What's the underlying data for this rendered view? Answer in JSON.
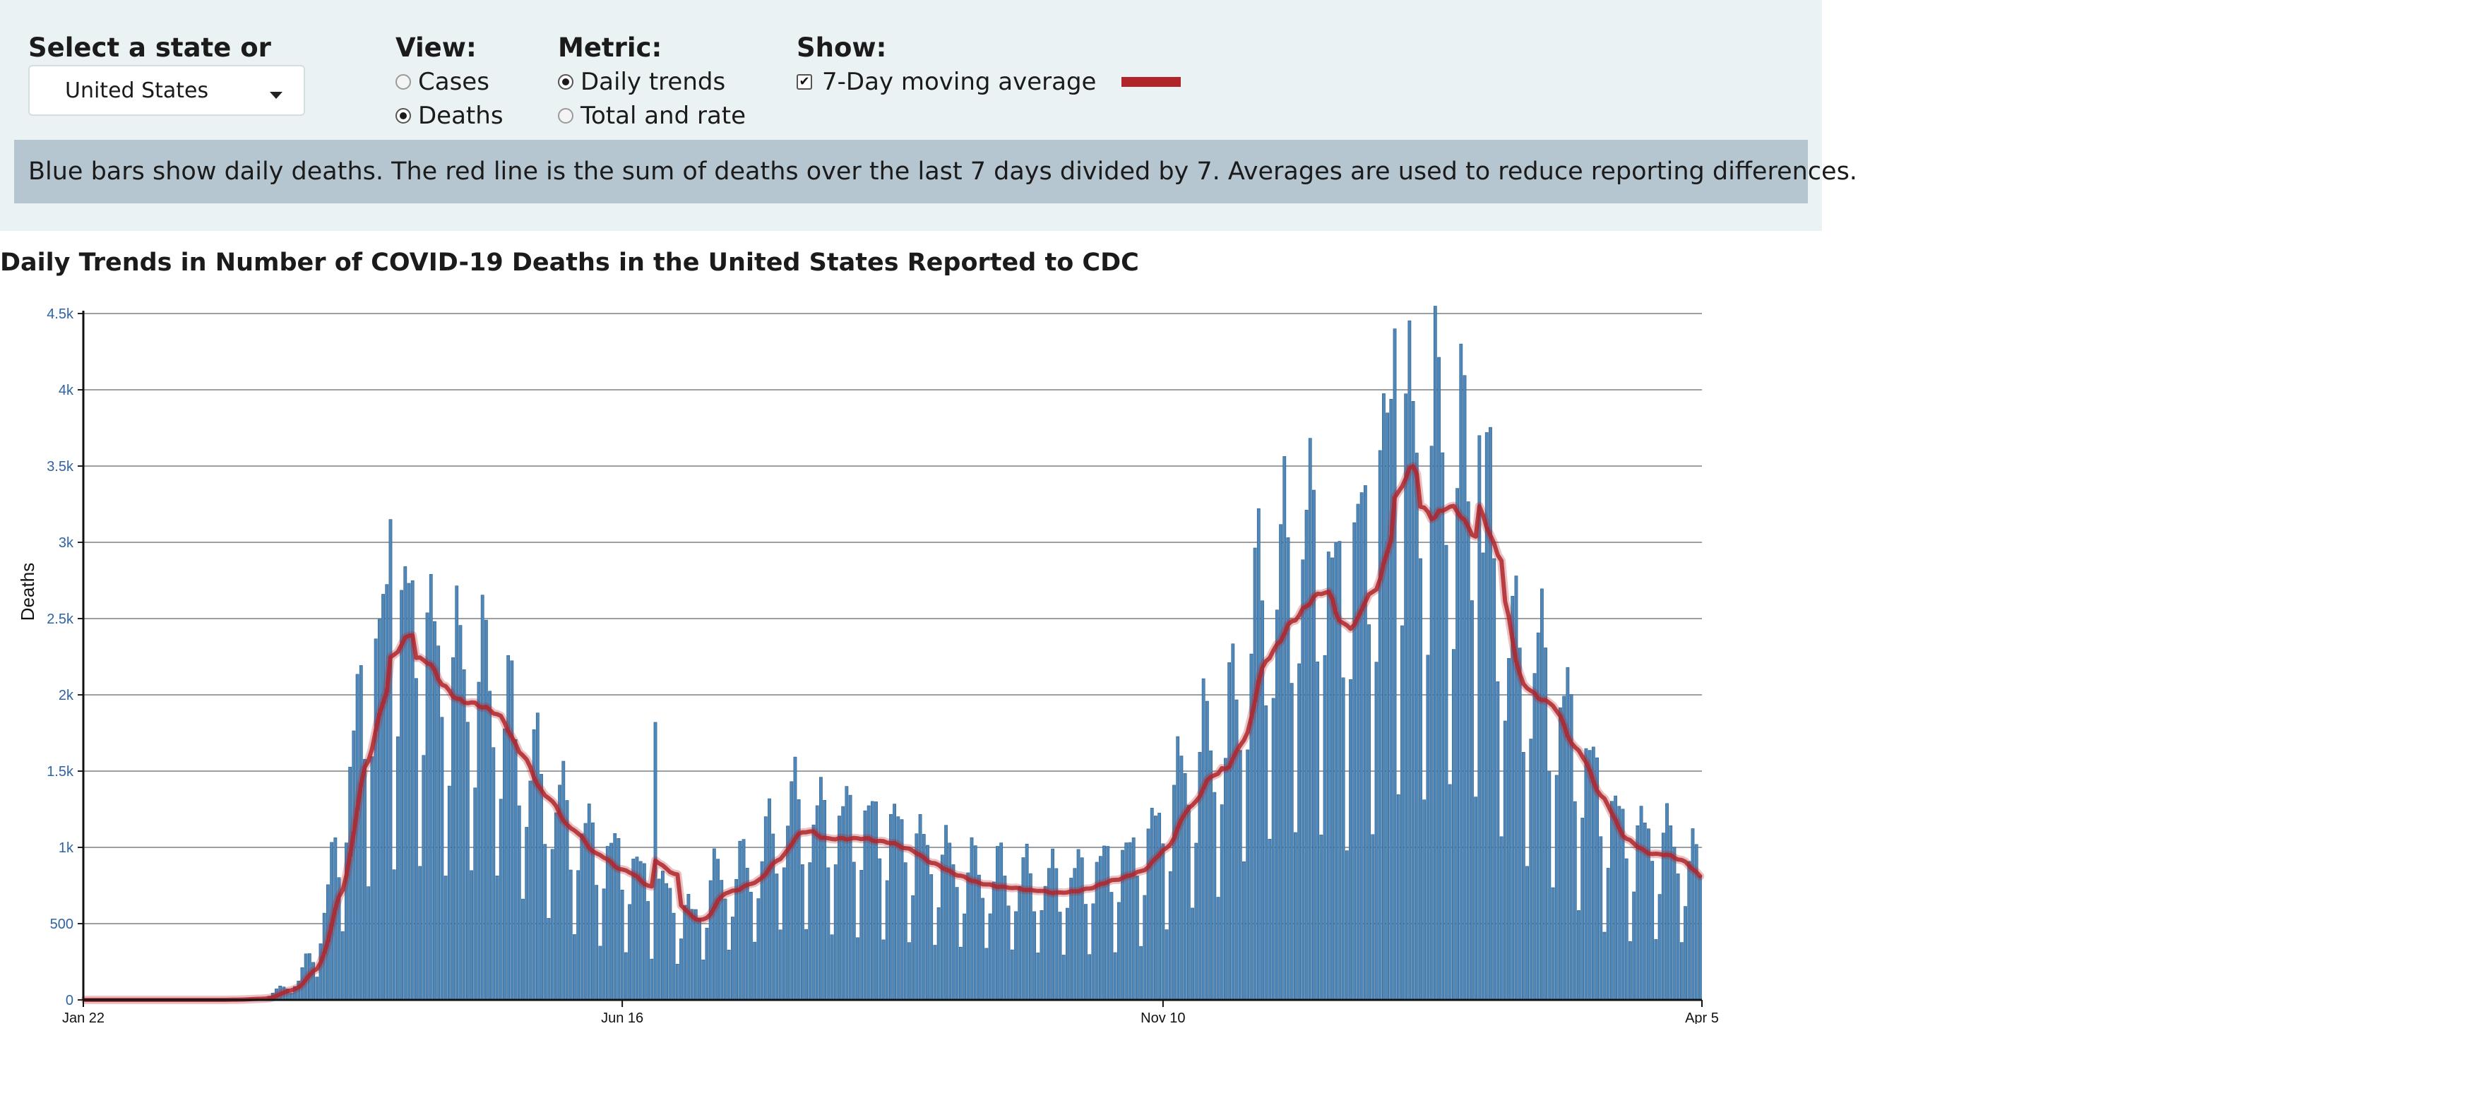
{
  "controls": {
    "state_label": "Select a state or territory:",
    "state_value": "United States",
    "view_label": "View:",
    "view_options": [
      "Cases",
      "Deaths"
    ],
    "view_selected": "Deaths",
    "metric_label": "Metric:",
    "metric_options": [
      "Daily trends",
      "Total and rate"
    ],
    "metric_selected": "Daily trends",
    "show_label": "Show:",
    "show_option": "7-Day moving average",
    "show_checked": true
  },
  "note": "Blue bars show daily deaths. The red line is the sum of deaths over the last 7 days divided by 7. Averages are used to reduce reporting differences.",
  "colors": {
    "bar": "#4f87b9",
    "bar_stroke": "#2d5f8c",
    "average_line": "#b0252a",
    "grid": "#9aa0a6",
    "tick_label": "#2e64a2",
    "panel": "#eaf2f3",
    "note": "#b6c6d0"
  },
  "chart_data": {
    "type": "bar",
    "title": "Daily Trends in Number of COVID-19 Deaths in the United States Reported to CDC",
    "xlabel": "",
    "ylabel": "Deaths",
    "ylim": [
      0,
      4500
    ],
    "yticks": [
      0,
      500,
      1000,
      1500,
      2000,
      2500,
      3000,
      3500,
      4000,
      4500
    ],
    "ytick_labels": [
      "0",
      "500",
      "1k",
      "1.5k",
      "2k",
      "2.5k",
      "3k",
      "3.5k",
      "4k",
      "4.5k"
    ],
    "xticks": [
      {
        "date": "2020-01-22",
        "label": "Jan 22"
      },
      {
        "date": "2020-06-16",
        "label": "Jun 16"
      },
      {
        "date": "2020-11-10",
        "label": "Nov 10"
      },
      {
        "date": "2021-04-05",
        "label": "Apr 5"
      }
    ],
    "grid": true,
    "series": [
      {
        "kind": "bar",
        "start_date": "2020-01-22",
        "end_date": "2021-04-05",
        "anchors": [
          [
            "2020-01-22",
            0
          ],
          [
            "2020-02-28",
            0
          ],
          [
            "2020-03-10",
            10
          ],
          [
            "2020-03-20",
            120
          ],
          [
            "2020-03-25",
            350
          ],
          [
            "2020-03-28",
            620
          ],
          [
            "2020-04-01",
            1100
          ],
          [
            "2020-04-03",
            1350
          ],
          [
            "2020-04-07",
            1850
          ],
          [
            "2020-04-14",
            2200
          ],
          [
            "2020-04-21",
            2250
          ],
          [
            "2020-04-28",
            1950
          ],
          [
            "2020-05-05",
            1950
          ],
          [
            "2020-05-12",
            1850
          ],
          [
            "2020-05-19",
            1500
          ],
          [
            "2020-05-26",
            1250
          ],
          [
            "2020-06-02",
            1050
          ],
          [
            "2020-06-09",
            900
          ],
          [
            "2020-06-16",
            820
          ],
          [
            "2020-06-23",
            700
          ],
          [
            "2020-06-30",
            600
          ],
          [
            "2020-07-05",
            480
          ],
          [
            "2020-07-10",
            700
          ],
          [
            "2020-07-18",
            750
          ],
          [
            "2020-07-25",
            900
          ],
          [
            "2020-08-01",
            1130
          ],
          [
            "2020-08-08",
            1050
          ],
          [
            "2020-08-15",
            1060
          ],
          [
            "2020-08-22",
            1040
          ],
          [
            "2020-08-29",
            1000
          ],
          [
            "2020-09-05",
            900
          ],
          [
            "2020-09-12",
            820
          ],
          [
            "2020-09-19",
            760
          ],
          [
            "2020-09-26",
            740
          ],
          [
            "2020-10-03",
            720
          ],
          [
            "2020-10-10",
            700
          ],
          [
            "2020-10-17",
            720
          ],
          [
            "2020-10-24",
            780
          ],
          [
            "2020-10-31",
            820
          ],
          [
            "2020-11-07",
            950
          ],
          [
            "2020-11-14",
            1250
          ],
          [
            "2020-11-21",
            1500
          ],
          [
            "2020-11-27",
            1500
          ],
          [
            "2020-12-04",
            2200
          ],
          [
            "2020-12-11",
            2450
          ],
          [
            "2020-12-18",
            2650
          ],
          [
            "2020-12-24",
            2700
          ],
          [
            "2020-12-27",
            2280
          ],
          [
            "2020-12-31",
            2600
          ],
          [
            "2021-01-05",
            2700
          ],
          [
            "2021-01-12",
            3350
          ],
          [
            "2021-01-15",
            3350
          ],
          [
            "2021-01-19",
            3050
          ],
          [
            "2021-01-24",
            3300
          ],
          [
            "2021-01-28",
            3150
          ],
          [
            "2021-02-04",
            2900
          ],
          [
            "2021-02-08",
            2600
          ],
          [
            "2021-02-14",
            1950
          ],
          [
            "2021-02-18",
            2050
          ],
          [
            "2021-02-25",
            1750
          ],
          [
            "2021-03-04",
            1450
          ],
          [
            "2021-03-11",
            1100
          ],
          [
            "2021-03-18",
            950
          ],
          [
            "2021-03-25",
            960
          ],
          [
            "2021-04-01",
            850
          ],
          [
            "2021-04-05",
            750
          ]
        ],
        "weekly_pattern": [
          0.42,
          0.78,
          1.12,
          1.3,
          1.32,
          1.18,
          0.88
        ],
        "spikes": [
          {
            "date": "2020-04-14",
            "value": 3150
          },
          {
            "date": "2020-06-25",
            "value": 1820
          },
          {
            "date": "2020-11-26",
            "value": 1280
          },
          {
            "date": "2021-01-12",
            "value": 4400
          },
          {
            "date": "2021-02-04",
            "value": 3700
          }
        ]
      },
      {
        "kind": "line",
        "name": "7-Day moving average",
        "start_date": "2020-01-22",
        "end_date": "2021-04-05"
      }
    ]
  }
}
